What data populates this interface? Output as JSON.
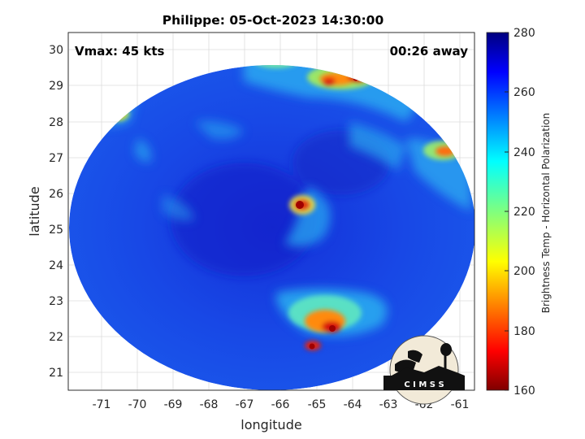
{
  "title": "Philippe: 05-Oct-2023 14:30:00",
  "vmax_label": "Vmax: 45 kts",
  "time_away": "00:26 away",
  "x_axis": {
    "label": "longitude",
    "ticks": [
      "-71",
      "-70",
      "-69",
      "-68",
      "-67",
      "-66",
      "-65",
      "-64",
      "-63",
      "-62",
      "-61"
    ]
  },
  "y_axis": {
    "label": "latitude",
    "ticks": [
      "30",
      "29",
      "28",
      "27",
      "26",
      "25",
      "24",
      "23",
      "22",
      "21"
    ]
  },
  "colorbar": {
    "label": "Brightness Temp - Horizontal Polarization",
    "ticks": [
      "280",
      "260",
      "240",
      "220",
      "200",
      "180",
      "160"
    ],
    "colormap": "jet",
    "range": [
      160,
      280
    ]
  },
  "logo_text": "C I M S S",
  "chart_data": {
    "type": "heatmap",
    "title": "Philippe: 05-Oct-2023 14:30:00",
    "xlabel": "longitude",
    "ylabel": "latitude",
    "xlim": [
      -71.9,
      -60.8
    ],
    "ylim": [
      20.5,
      30.5
    ],
    "colorbar_range": [
      160,
      280
    ],
    "swath_center": [
      -66.1,
      25.6
    ],
    "features": [
      {
        "description": "warm core at storm center",
        "lon": -65.5,
        "lat": 25.7,
        "tb": 170
      },
      {
        "description": "rainband cluster southeast",
        "lon": -64.8,
        "lat": 22.1,
        "tb": 175
      },
      {
        "description": "rainband northeast",
        "lon": -64.5,
        "lat": 29.2,
        "tb": 185
      },
      {
        "description": "convection east edge",
        "lon": -61.8,
        "lat": 27.2,
        "tb": 200
      },
      {
        "description": "convection northwest",
        "lon": -70.5,
        "lat": 28.2,
        "tb": 215
      }
    ],
    "legend_position": "right"
  }
}
